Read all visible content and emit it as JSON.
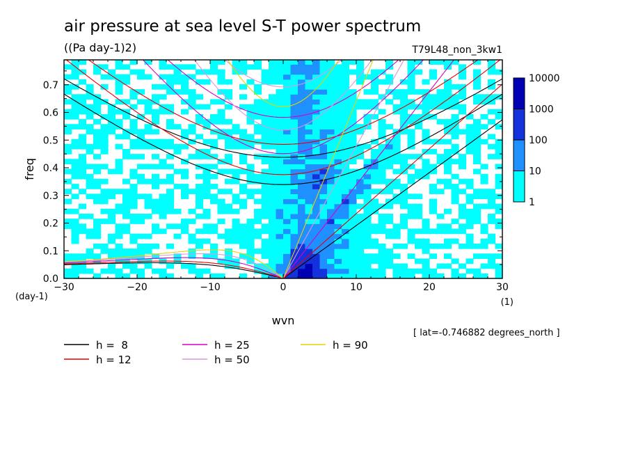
{
  "chart_data": {
    "type": "heatmap",
    "title": "air pressure at sea level S-T power spectrum",
    "units": "((Pa day-1)2)",
    "run_label": "T79L48_non_3kw1",
    "xlabel": "wvn",
    "x_unit": "(1)",
    "ylabel": "freq",
    "y_unit": "(day-1)",
    "xlim": [
      -30,
      30
    ],
    "ylim": [
      0,
      0.79
    ],
    "x_ticks": [
      -30,
      -20,
      -10,
      0,
      10,
      20,
      30
    ],
    "y_ticks": [
      0.0,
      0.1,
      0.2,
      0.3,
      0.4,
      0.5,
      0.6,
      0.7
    ],
    "footnote": "[ lat=-0.746882 degrees_north ]",
    "colorbar": {
      "levels": [
        "1",
        "10",
        "100",
        "1000",
        "10000"
      ],
      "colors": [
        "#00ffff",
        "#1e90ff",
        "#1432dc",
        "#0000b4",
        "#5a14c8"
      ]
    },
    "dispersion_curves": [
      {
        "label": "h =  8",
        "h": 8,
        "color": "#000000"
      },
      {
        "label": "h = 12",
        "h": 12,
        "color": "#e60000"
      },
      {
        "label": "h = 25",
        "h": 25,
        "color": "#d400c8"
      },
      {
        "label": "h = 50",
        "h": 50,
        "color": "#dc96dc"
      },
      {
        "label": "h = 90",
        "h": 90,
        "color": "#e6d200"
      }
    ],
    "spectrum_note": "power concentrated near wvn 0-10 at low frequency; cyan (1-10) envelope broadens around wvn -5 to 15 up to freq 0.79"
  }
}
